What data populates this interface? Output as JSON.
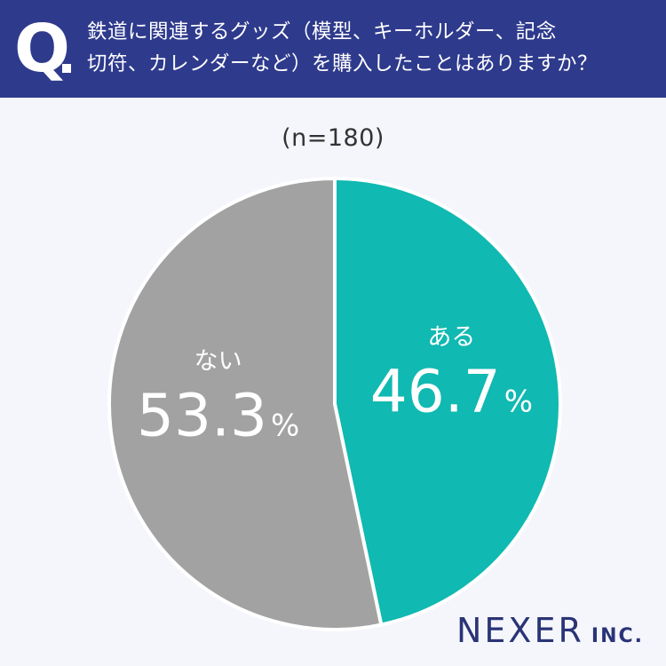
{
  "header": {
    "q_label": "Q",
    "question_lines": [
      "鉄道に関連するグッズ（模型、キーホルダー、記念",
      "切符、カレンダーなど）を購入したことはありますか？"
    ]
  },
  "sample_label": "(n=180)",
  "logo": {
    "main": "NEXER",
    "sub": "INC."
  },
  "colors": {
    "header_bg": "#2e3a8c",
    "yes": "#10b9b1",
    "no": "#a2a2a2",
    "background": "#f5f6fc"
  },
  "chart_data": {
    "type": "pie",
    "title": "鉄道に関連するグッズ（模型、キーホルダー、記念切符、カレンダーなど）を購入したことはありますか？",
    "n": 180,
    "slices": [
      {
        "label": "ある",
        "value": 46.7,
        "display": "46.7",
        "unit": "%",
        "color": "#10b9b1"
      },
      {
        "label": "ない",
        "value": 53.3,
        "display": "53.3",
        "unit": "%",
        "color": "#a2a2a2"
      }
    ]
  }
}
